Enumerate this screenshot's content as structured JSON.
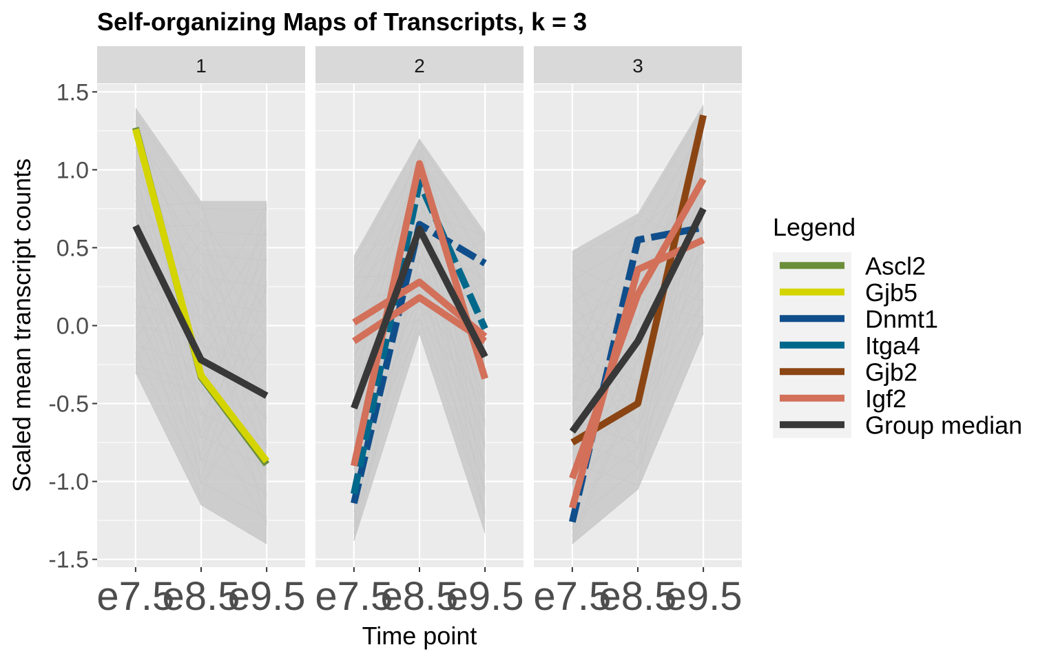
{
  "chart_data": {
    "type": "line",
    "title": "Self-organizing Maps of Transcripts, k = 3",
    "xlabel": "Time point",
    "ylabel": "Scaled mean transcript counts",
    "x": [
      "e7.5",
      "e8.5",
      "e9.5"
    ],
    "y_ticks": [
      "1.5",
      "1.0",
      "0.5",
      "0.0",
      "-0.5",
      "-1.0",
      "-1.5"
    ],
    "y_tick_values": [
      1.5,
      1.0,
      0.5,
      0.0,
      -0.5,
      -1.0,
      -1.5
    ],
    "ylim": [
      -1.55,
      1.55
    ],
    "grid": true,
    "facets": [
      {
        "label": "1",
        "background_band": {
          "upper": [
            1.4,
            0.8,
            0.8
          ],
          "lower": [
            -0.3,
            -1.15,
            -1.4
          ]
        },
        "series": [
          {
            "name": "Ascl2",
            "values": [
              1.27,
              -0.33,
              -0.89
            ]
          },
          {
            "name": "Gjb5",
            "values": [
              1.26,
              -0.32,
              -0.87
            ]
          },
          {
            "name": "Group median",
            "values": [
              0.64,
              -0.22,
              -0.45
            ]
          }
        ]
      },
      {
        "label": "2",
        "background_band": {
          "upper": [
            0.45,
            1.2,
            0.6
          ],
          "lower": [
            -1.38,
            -0.05,
            -1.33
          ]
        },
        "series": [
          {
            "name": "Dnmt1",
            "values": [
              -1.14,
              0.65,
              0.4
            ]
          },
          {
            "name": "Itga4",
            "values": [
              -1.08,
              0.92,
              -0.02
            ]
          },
          {
            "name": "Igf2",
            "values": [
              -0.9,
              1.04,
              -0.34
            ]
          },
          {
            "name": "Igf2",
            "values": [
              0.02,
              0.28,
              -0.07
            ]
          },
          {
            "name": "Igf2",
            "values": [
              -0.1,
              0.18,
              -0.1
            ]
          },
          {
            "name": "Group median",
            "values": [
              -0.53,
              0.62,
              -0.2
            ]
          }
        ]
      },
      {
        "label": "3",
        "background_band": {
          "upper": [
            0.48,
            0.72,
            1.42
          ],
          "lower": [
            -1.4,
            -1.05,
            -0.05
          ]
        },
        "series": [
          {
            "name": "Dnmt1",
            "values": [
              -1.26,
              0.55,
              0.63
            ]
          },
          {
            "name": "Gjb2",
            "values": [
              -0.75,
              -0.5,
              1.35
            ]
          },
          {
            "name": "Igf2",
            "values": [
              -1.17,
              0.36,
              0.55
            ]
          },
          {
            "name": "Igf2",
            "values": [
              -0.98,
              0.2,
              0.94
            ]
          },
          {
            "name": "Group median",
            "values": [
              -0.68,
              -0.1,
              0.75
            ]
          }
        ]
      }
    ],
    "legend": {
      "title": "Legend",
      "position": "right",
      "entries": [
        {
          "name": "Ascl2",
          "color": "#6b8e3a"
        },
        {
          "name": "Gjb5",
          "color": "#d4d400"
        },
        {
          "name": "Dnmt1",
          "color": "#104e8b"
        },
        {
          "name": "Itga4",
          "color": "#00688b"
        },
        {
          "name": "Gjb2",
          "color": "#8b4513"
        },
        {
          "name": "Igf2",
          "color": "#d2705a"
        },
        {
          "name": "Group median",
          "color": "#383838"
        }
      ]
    },
    "colors": {
      "panel_bg": "#ebebeb",
      "strip_bg": "#d9d9d9",
      "grid": "#ffffff",
      "background_lines": "#c8c8c8",
      "axis_text": "#4d4d4d",
      "legend_key_bg": "#f2f2f2"
    }
  }
}
